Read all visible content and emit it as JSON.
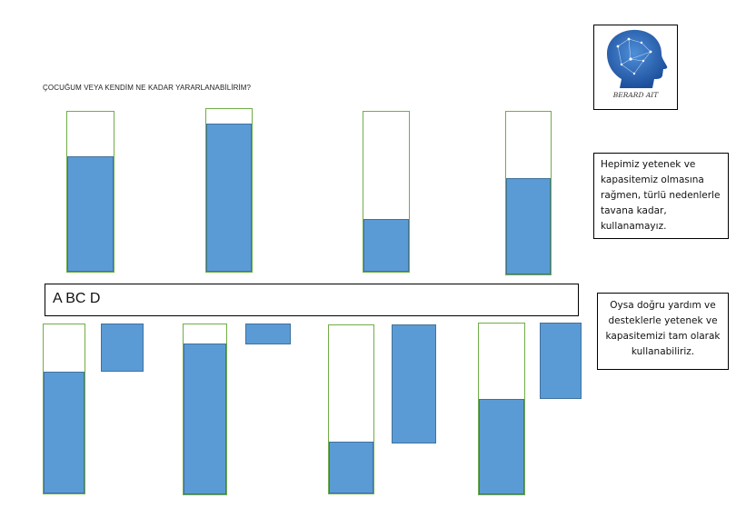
{
  "title": "ÇOCUĞUM VEYA KENDİM NE KADAR YARARLANABİLİRİM?",
  "labels": "A BC   D",
  "note_top": "Hepimiz yetenek ve kapasitemiz olmasına rağmen, türlü nedenlerle tavana kadar, kullanamayız.",
  "note_bottom": "Oysa doğru yardım ve desteklerle yetenek ve kapasitemizi tam olarak kullanabiliriz.",
  "logo_text": "BERARD AIT",
  "colors": {
    "fill": "#5b9bd5",
    "outline": "#70ad47",
    "fill_border": "#41719c"
  },
  "top_bars": [
    {
      "fill_fraction": 0.72
    },
    {
      "fill_fraction": 0.91
    },
    {
      "fill_fraction": 0.33
    },
    {
      "fill_fraction": 0.59
    }
  ],
  "bottom_bars": [
    {
      "fill_fraction": 0.72,
      "support_fraction": 0.28
    },
    {
      "fill_fraction": 0.89,
      "support_fraction": 0.12
    },
    {
      "fill_fraction": 0.31,
      "support_fraction": 0.7
    },
    {
      "fill_fraction": 0.56,
      "support_fraction": 0.44
    }
  ]
}
